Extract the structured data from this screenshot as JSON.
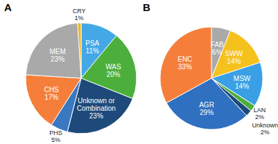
{
  "chart_data": [
    {
      "type": "pie",
      "title": "A",
      "categories": [
        "PSA",
        "WAS",
        "Unknown or Combination",
        "PHS",
        "CHS",
        "MEM",
        "CRY"
      ],
      "values": [
        11,
        20,
        23,
        5,
        17,
        23,
        1
      ],
      "value_labels": [
        "11%",
        "20%",
        "23%",
        "5%",
        "17%",
        "23%",
        "1%"
      ],
      "colors": [
        "#45a8e6",
        "#4caf3c",
        "#1d4a7a",
        "#3a78c2",
        "#f57f3a",
        "#a9a9a9",
        "#f2b21b"
      ],
      "data_labels": true
    },
    {
      "type": "pie",
      "title": "B",
      "categories": [
        "FAB",
        "SWW",
        "MSW",
        "LAN",
        "Unknown",
        "AGR",
        "ENC"
      ],
      "values": [
        6,
        14,
        14,
        2,
        2,
        29,
        33
      ],
      "value_labels": [
        "6%",
        "14%",
        "14%",
        "2%",
        "2%",
        "29%",
        "33%"
      ],
      "colors": [
        "#a9a9a9",
        "#f5c11c",
        "#3aa0e6",
        "#4caf3c",
        "#1d4a7a",
        "#3070c0",
        "#f57f3a"
      ],
      "data_labels": true
    }
  ]
}
